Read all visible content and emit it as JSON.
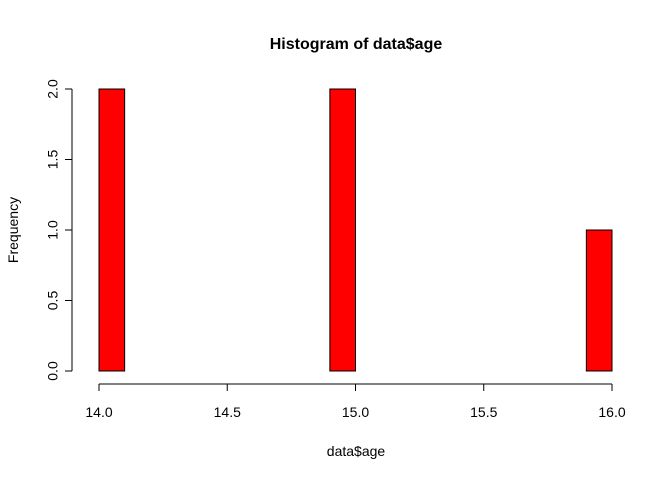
{
  "chart_data": {
    "type": "bar",
    "title": "Histogram of data$age",
    "xlabel": "data$age",
    "ylabel": "Frequency",
    "bar_color": "#ff0000",
    "bar_edge_color": "#000000",
    "xlim": [
      14.0,
      16.0
    ],
    "ylim": [
      0,
      2.0
    ],
    "x_ticks": [
      "14.0",
      "14.5",
      "15.0",
      "15.5",
      "16.0"
    ],
    "y_ticks": [
      "0.0",
      "0.5",
      "1.0",
      "1.5",
      "2.0"
    ],
    "bins": [
      {
        "start": 14.0,
        "end": 14.1,
        "count": 2
      },
      {
        "start": 14.1,
        "end": 14.2,
        "count": 0
      },
      {
        "start": 14.2,
        "end": 14.3,
        "count": 0
      },
      {
        "start": 14.3,
        "end": 14.4,
        "count": 0
      },
      {
        "start": 14.4,
        "end": 14.5,
        "count": 0
      },
      {
        "start": 14.5,
        "end": 14.6,
        "count": 0
      },
      {
        "start": 14.6,
        "end": 14.7,
        "count": 0
      },
      {
        "start": 14.7,
        "end": 14.8,
        "count": 0
      },
      {
        "start": 14.8,
        "end": 14.9,
        "count": 0
      },
      {
        "start": 14.9,
        "end": 15.0,
        "count": 2
      },
      {
        "start": 15.0,
        "end": 15.1,
        "count": 0
      },
      {
        "start": 15.1,
        "end": 15.2,
        "count": 0
      },
      {
        "start": 15.2,
        "end": 15.3,
        "count": 0
      },
      {
        "start": 15.3,
        "end": 15.4,
        "count": 0
      },
      {
        "start": 15.4,
        "end": 15.5,
        "count": 0
      },
      {
        "start": 15.5,
        "end": 15.6,
        "count": 0
      },
      {
        "start": 15.6,
        "end": 15.7,
        "count": 0
      },
      {
        "start": 15.7,
        "end": 15.8,
        "count": 0
      },
      {
        "start": 15.8,
        "end": 15.9,
        "count": 0
      },
      {
        "start": 15.9,
        "end": 16.0,
        "count": 1
      }
    ]
  }
}
